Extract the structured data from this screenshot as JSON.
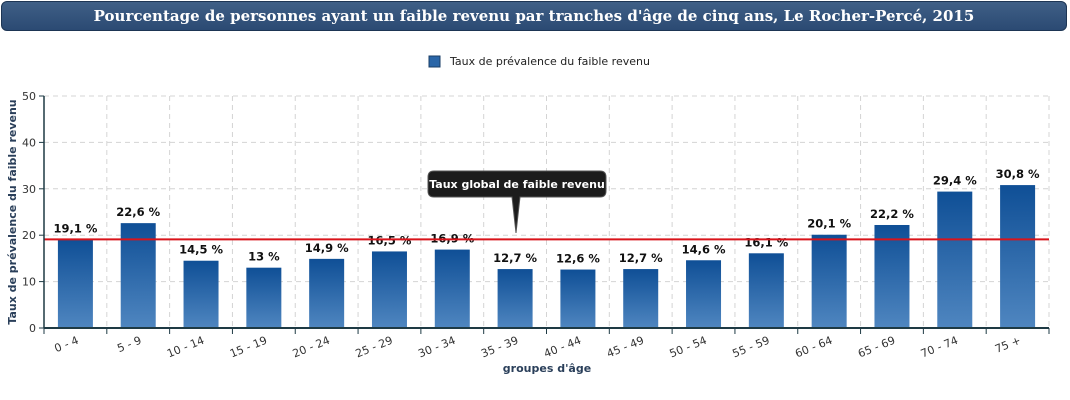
{
  "title": "Pourcentage de personnes ayant un faible revenu par tranches d'âge de cinq ans, Le Rocher-Percé, 2015",
  "legend": {
    "label": "Taux de prévalence du faible revenu",
    "color": "#2a66a8",
    "position": "top-center"
  },
  "reference_line": {
    "value": 19.1,
    "label": "Taux global de faible revenu",
    "color": "#d9141b"
  },
  "colors": {
    "bar_top": "#0f4f96",
    "bar_bottom": "#4f86c0",
    "axis": "#1e3a44",
    "grid": "#d4d4d4"
  },
  "chart_data": {
    "type": "bar",
    "categories": [
      "0 - 4",
      "5 - 9",
      "10 - 14",
      "15 - 19",
      "20 - 24",
      "25 - 29",
      "30 - 34",
      "35 - 39",
      "40 - 44",
      "45 - 49",
      "50 - 54",
      "55 - 59",
      "60 - 64",
      "65 - 69",
      "70 - 74",
      "75 +"
    ],
    "series": [
      {
        "name": "Taux de prévalence du faible revenu",
        "values": [
          19.1,
          22.6,
          14.5,
          13,
          14.9,
          16.5,
          16.9,
          12.7,
          12.6,
          12.7,
          14.6,
          16.1,
          20.1,
          22.2,
          29.4,
          30.8
        ]
      }
    ],
    "data_labels": [
      "19,1 %",
      "22,6 %",
      "14,5 %",
      "13 %",
      "14,9 %",
      "16,5 %",
      "16,9 %",
      "12,7 %",
      "12,6 %",
      "12,7 %",
      "14,6 %",
      "16,1 %",
      "20,1 %",
      "22,2 %",
      "29,4 %",
      "30,8 %"
    ],
    "xlabel": "groupes d'âge",
    "ylabel": "Taux de prévalence du faible revenu",
    "ylim": [
      0,
      50
    ],
    "yticks": [
      "0",
      "10",
      "20",
      "30",
      "40",
      "50"
    ],
    "grid": true
  }
}
